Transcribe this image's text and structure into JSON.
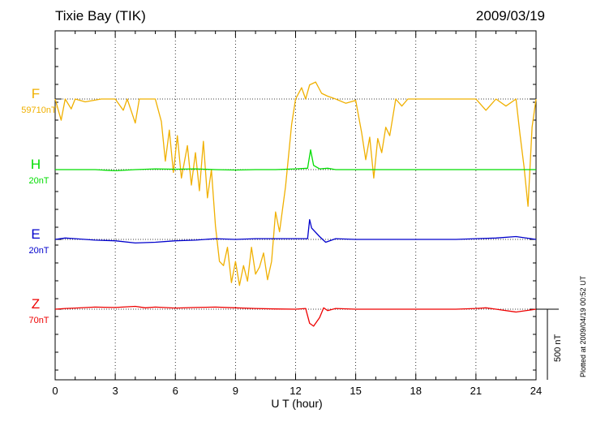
{
  "header": {
    "title": "Tixie Bay (TIK)",
    "date": "2009/03/19"
  },
  "footer": {
    "plotted_at": "Plotted at 2009/04/19 00:52 UT"
  },
  "chart_data": {
    "type": "line",
    "xlabel": "U T (hour)",
    "xlim": [
      0,
      24
    ],
    "x_ticks": [
      "0",
      "3",
      "6",
      "9",
      "12",
      "15",
      "18",
      "21",
      "24"
    ],
    "scale_bar_label": "500 nT",
    "scale_bar_nT": 500,
    "grid": "dotted vertical lines every 3 hours; dotted baseline per trace",
    "channels": [
      {
        "name": "F",
        "baseline_label": "59710nT",
        "color": "#f0b000"
      },
      {
        "name": "H",
        "baseline_label": "20nT",
        "color": "#00dd00"
      },
      {
        "name": "E",
        "baseline_label": "20nT",
        "color": "#0000cc"
      },
      {
        "name": "Z",
        "baseline_label": "70nT",
        "color": "#ee0000"
      }
    ],
    "series": [
      {
        "name": "F",
        "x": [
          0,
          0.3,
          0.5,
          0.8,
          1,
          1.5,
          2.3,
          2.5,
          3,
          3.4,
          3.6,
          4,
          4.2,
          5,
          5.3,
          5.5,
          5.7,
          5.9,
          6.1,
          6.3,
          6.6,
          6.8,
          7,
          7.2,
          7.4,
          7.6,
          7.8,
          8,
          8.2,
          8.4,
          8.6,
          8.8,
          9,
          9.2,
          9.4,
          9.6,
          9.8,
          10,
          10.2,
          10.4,
          10.6,
          10.8,
          11,
          11.2,
          11.5,
          11.8,
          12,
          12.3,
          12.5,
          12.7,
          13,
          13.3,
          13.6,
          14,
          14.5,
          15,
          15.3,
          15.5,
          15.7,
          15.9,
          16.1,
          16.3,
          16.5,
          16.7,
          17,
          17.3,
          17.6,
          18,
          19,
          20,
          21,
          21.5,
          22,
          22.5,
          23,
          23.2,
          23.4,
          23.6,
          23.8,
          24
        ],
        "values": [
          0,
          -150,
          0,
          -70,
          0,
          -20,
          0,
          0,
          0,
          -80,
          0,
          -170,
          0,
          0,
          -160,
          -440,
          -220,
          -520,
          -260,
          -560,
          -330,
          -610,
          -380,
          -650,
          -300,
          -700,
          -500,
          -900,
          -1150,
          -1180,
          -1050,
          -1300,
          -1150,
          -1320,
          -1180,
          -1290,
          -1050,
          -1240,
          -1190,
          -1090,
          -1280,
          -1150,
          -800,
          -940,
          -620,
          -180,
          0,
          80,
          0,
          100,
          120,
          40,
          20,
          0,
          -30,
          -10,
          -240,
          -430,
          -270,
          -560,
          -280,
          -380,
          -200,
          -260,
          0,
          -50,
          0,
          0,
          0,
          0,
          0,
          -80,
          0,
          -50,
          0,
          -250,
          -480,
          -760,
          -200,
          0
        ]
      },
      {
        "name": "H",
        "x": [
          0,
          1,
          2,
          3,
          4,
          5,
          6,
          7,
          8,
          9,
          10,
          11,
          12,
          12.6,
          12.75,
          12.9,
          13.2,
          13.6,
          14,
          15,
          16,
          17,
          18,
          19,
          20,
          21,
          22,
          23,
          24
        ],
        "values": [
          0,
          0,
          0,
          -8,
          0,
          5,
          3,
          5,
          0,
          -3,
          0,
          0,
          5,
          10,
          140,
          30,
          5,
          10,
          0,
          0,
          0,
          0,
          0,
          0,
          0,
          0,
          0,
          0,
          0
        ]
      },
      {
        "name": "E",
        "x": [
          0,
          0.5,
          1,
          2,
          3,
          4,
          5,
          6,
          7,
          8,
          9,
          10,
          11,
          12,
          12.6,
          12.7,
          12.8,
          13.2,
          13.5,
          14,
          15,
          16,
          17,
          18,
          19,
          20,
          21,
          22,
          23,
          24
        ],
        "values": [
          0,
          10,
          5,
          -5,
          -10,
          -25,
          -20,
          -10,
          -5,
          5,
          0,
          5,
          5,
          5,
          5,
          140,
          80,
          20,
          -20,
          5,
          0,
          0,
          0,
          0,
          0,
          0,
          5,
          10,
          20,
          0
        ]
      },
      {
        "name": "Z",
        "x": [
          0,
          0.5,
          1,
          2,
          3,
          4,
          4.5,
          5,
          6,
          7,
          8,
          9,
          10,
          11,
          12,
          12.5,
          12.7,
          12.9,
          13.2,
          13.4,
          13.6,
          14,
          15,
          16,
          17,
          18,
          19,
          20,
          21,
          21.5,
          22,
          23,
          24
        ],
        "values": [
          0,
          5,
          8,
          15,
          12,
          20,
          10,
          15,
          8,
          12,
          15,
          10,
          5,
          2,
          0,
          5,
          -100,
          -120,
          -60,
          10,
          -10,
          5,
          0,
          0,
          0,
          0,
          0,
          0,
          5,
          10,
          0,
          -20,
          0
        ]
      }
    ]
  }
}
